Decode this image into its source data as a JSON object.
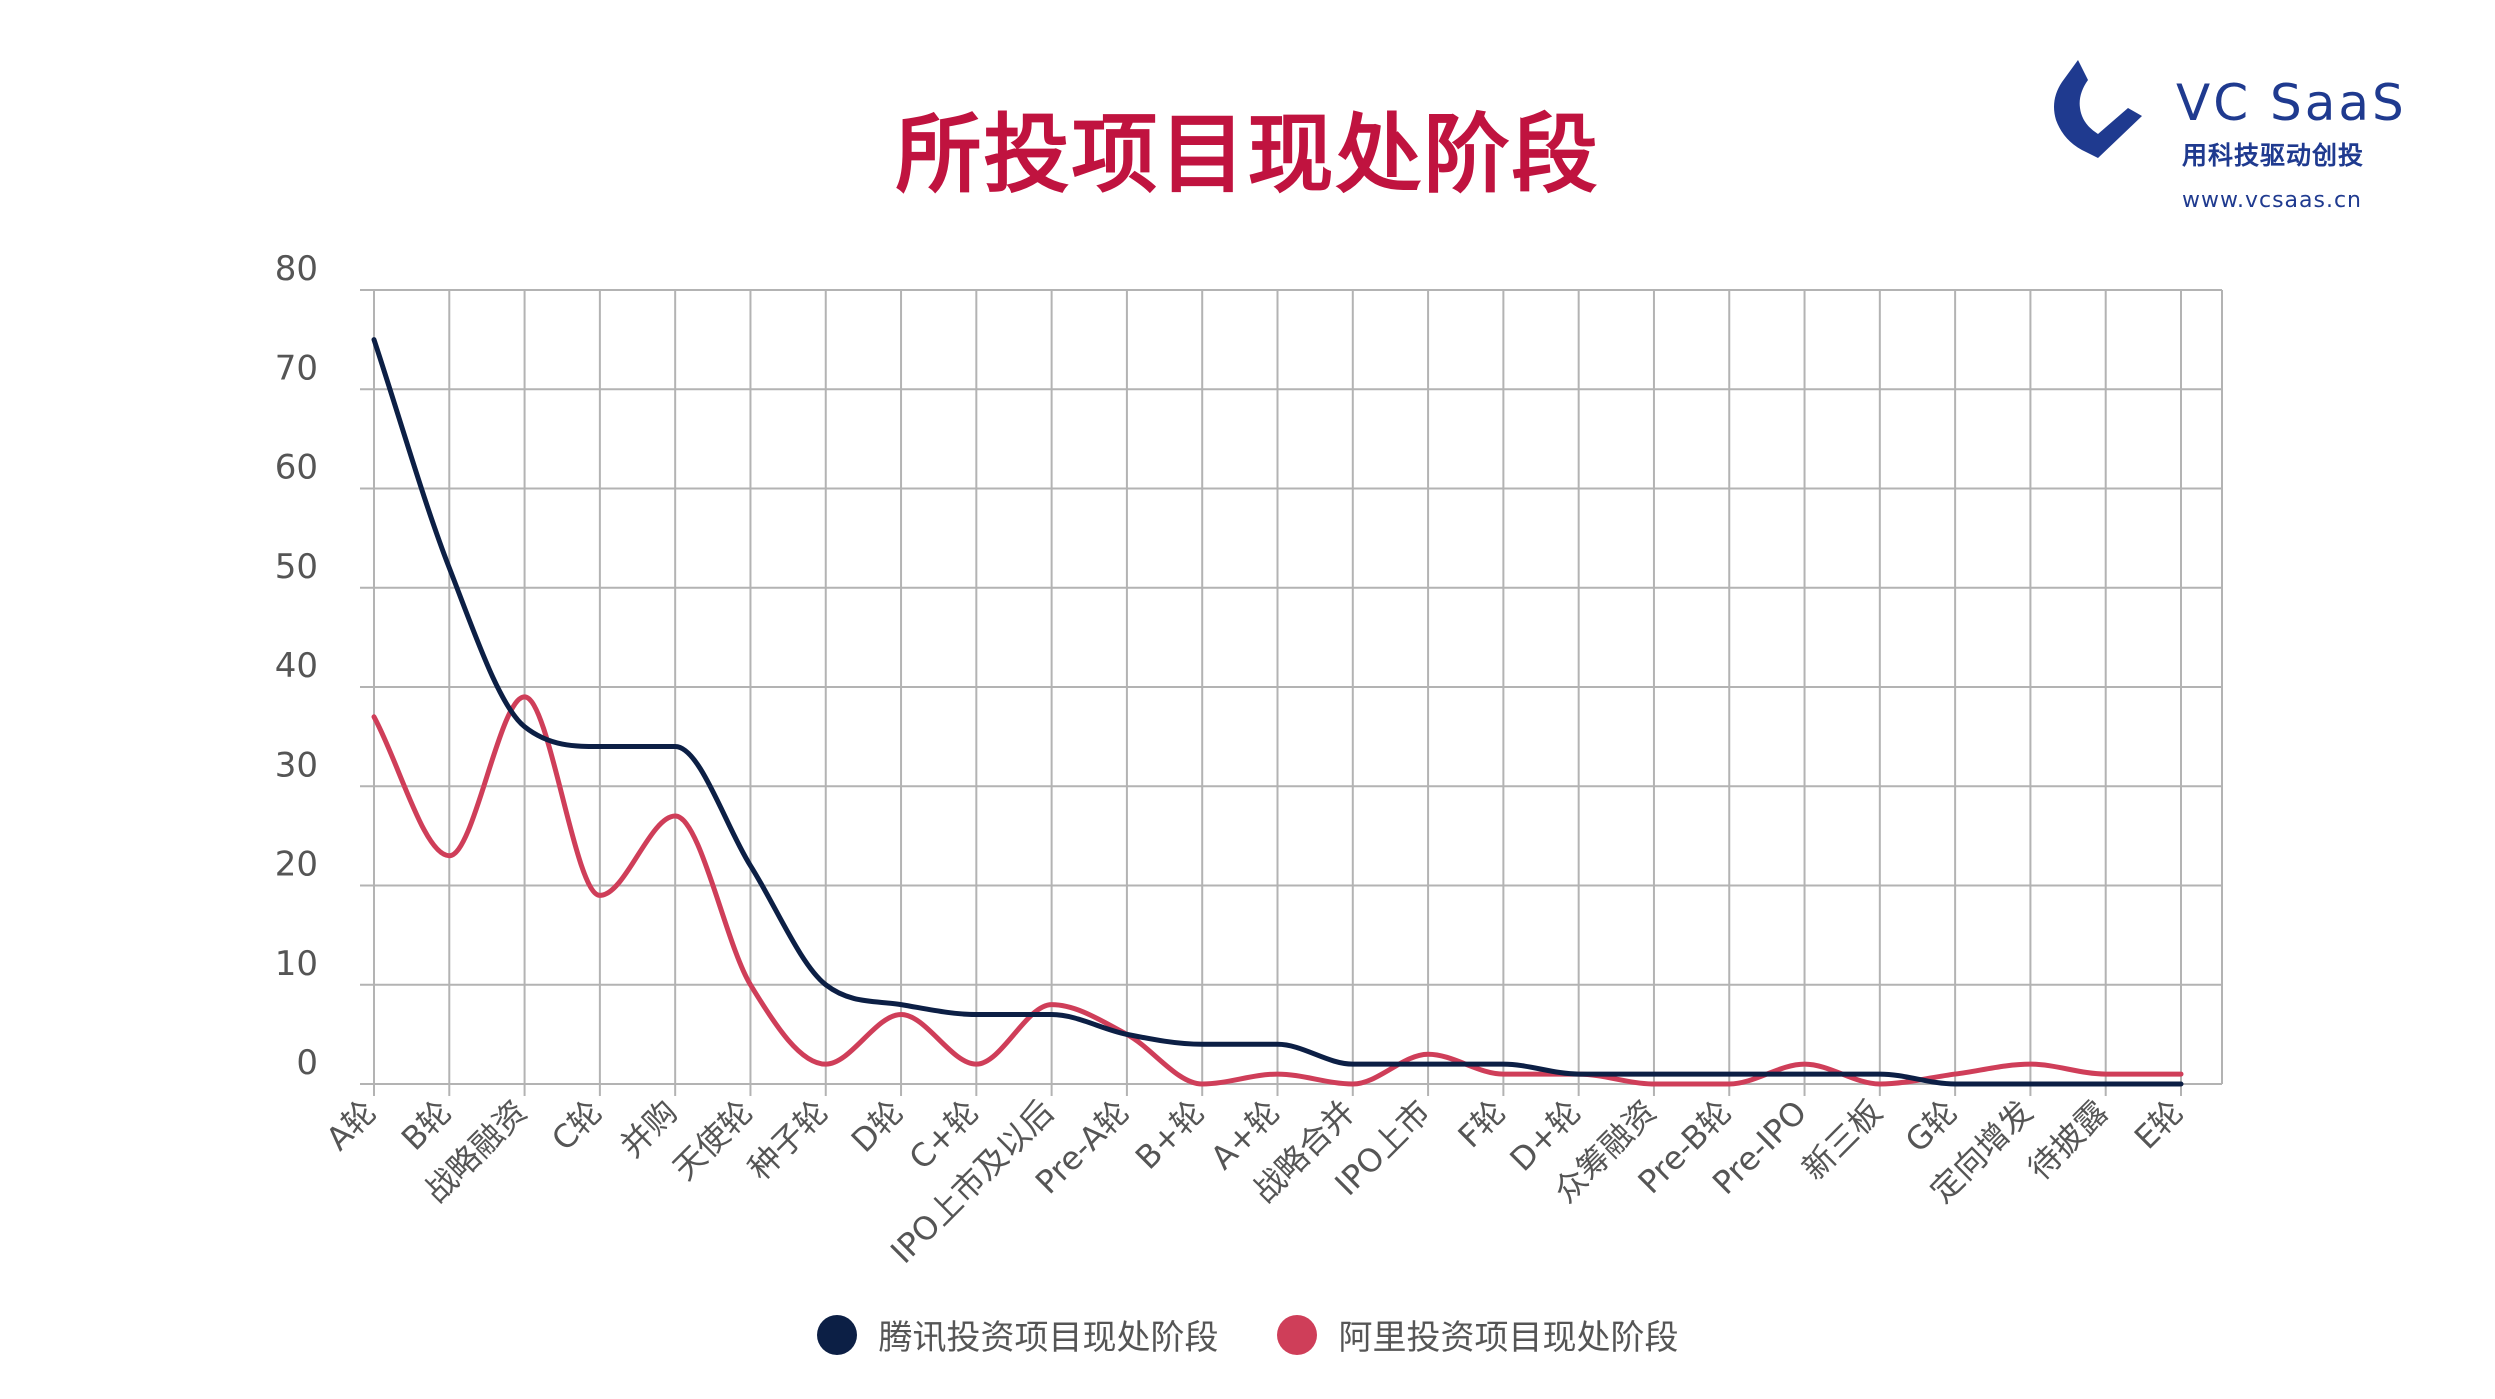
{
  "title": "所投项目现处阶段",
  "logo": {
    "icon": "vc-saas-logo-icon",
    "name": "VC SaaS",
    "slogan": "用科技驱动创投",
    "url": "www.vcsaas.cn",
    "color": "#1f3a8f"
  },
  "colors": {
    "title": "#c0133f",
    "grid": "#b3b3b3",
    "tick_text": "#555555"
  },
  "chart_data": {
    "type": "line",
    "title": "所投项目现处阶段",
    "xlabel": "",
    "ylabel": "",
    "ylim": [
      0,
      80
    ],
    "yticks": [
      0,
      10,
      20,
      30,
      40,
      50,
      60,
      70,
      80
    ],
    "grid": true,
    "smooth": true,
    "legend_position": "bottom",
    "categories": [
      "A轮",
      "B轮",
      "战略融资",
      "C轮",
      "并购",
      "天使轮",
      "种子轮",
      "D轮",
      "C+轮",
      "IPO上市及以后",
      "Pre-A轮",
      "B+轮",
      "A+轮",
      "战略合并",
      "IPO上市",
      "F轮",
      "D+轮",
      "众筹融资",
      "Pre-B轮",
      "Pre-IPO",
      "新三板",
      "G轮",
      "定向增发",
      "待披露",
      "E轮"
    ],
    "series": [
      {
        "name": "腾讯投资项目现处阶段",
        "color": "#0c1f45",
        "values": [
          75,
          52,
          36,
          34,
          34,
          22,
          10,
          8,
          7,
          7,
          5,
          4,
          4,
          2,
          2,
          2,
          1,
          1,
          1,
          1,
          1,
          0,
          0,
          0,
          0
        ]
      },
      {
        "name": "阿里投资项目现处阶段",
        "color": "#cf3e59",
        "values": [
          37,
          23,
          39,
          19,
          27,
          10,
          2,
          7,
          2,
          8,
          5,
          0,
          1,
          0,
          3,
          1,
          1,
          0,
          0,
          2,
          0,
          1,
          2,
          1,
          1
        ]
      }
    ]
  }
}
